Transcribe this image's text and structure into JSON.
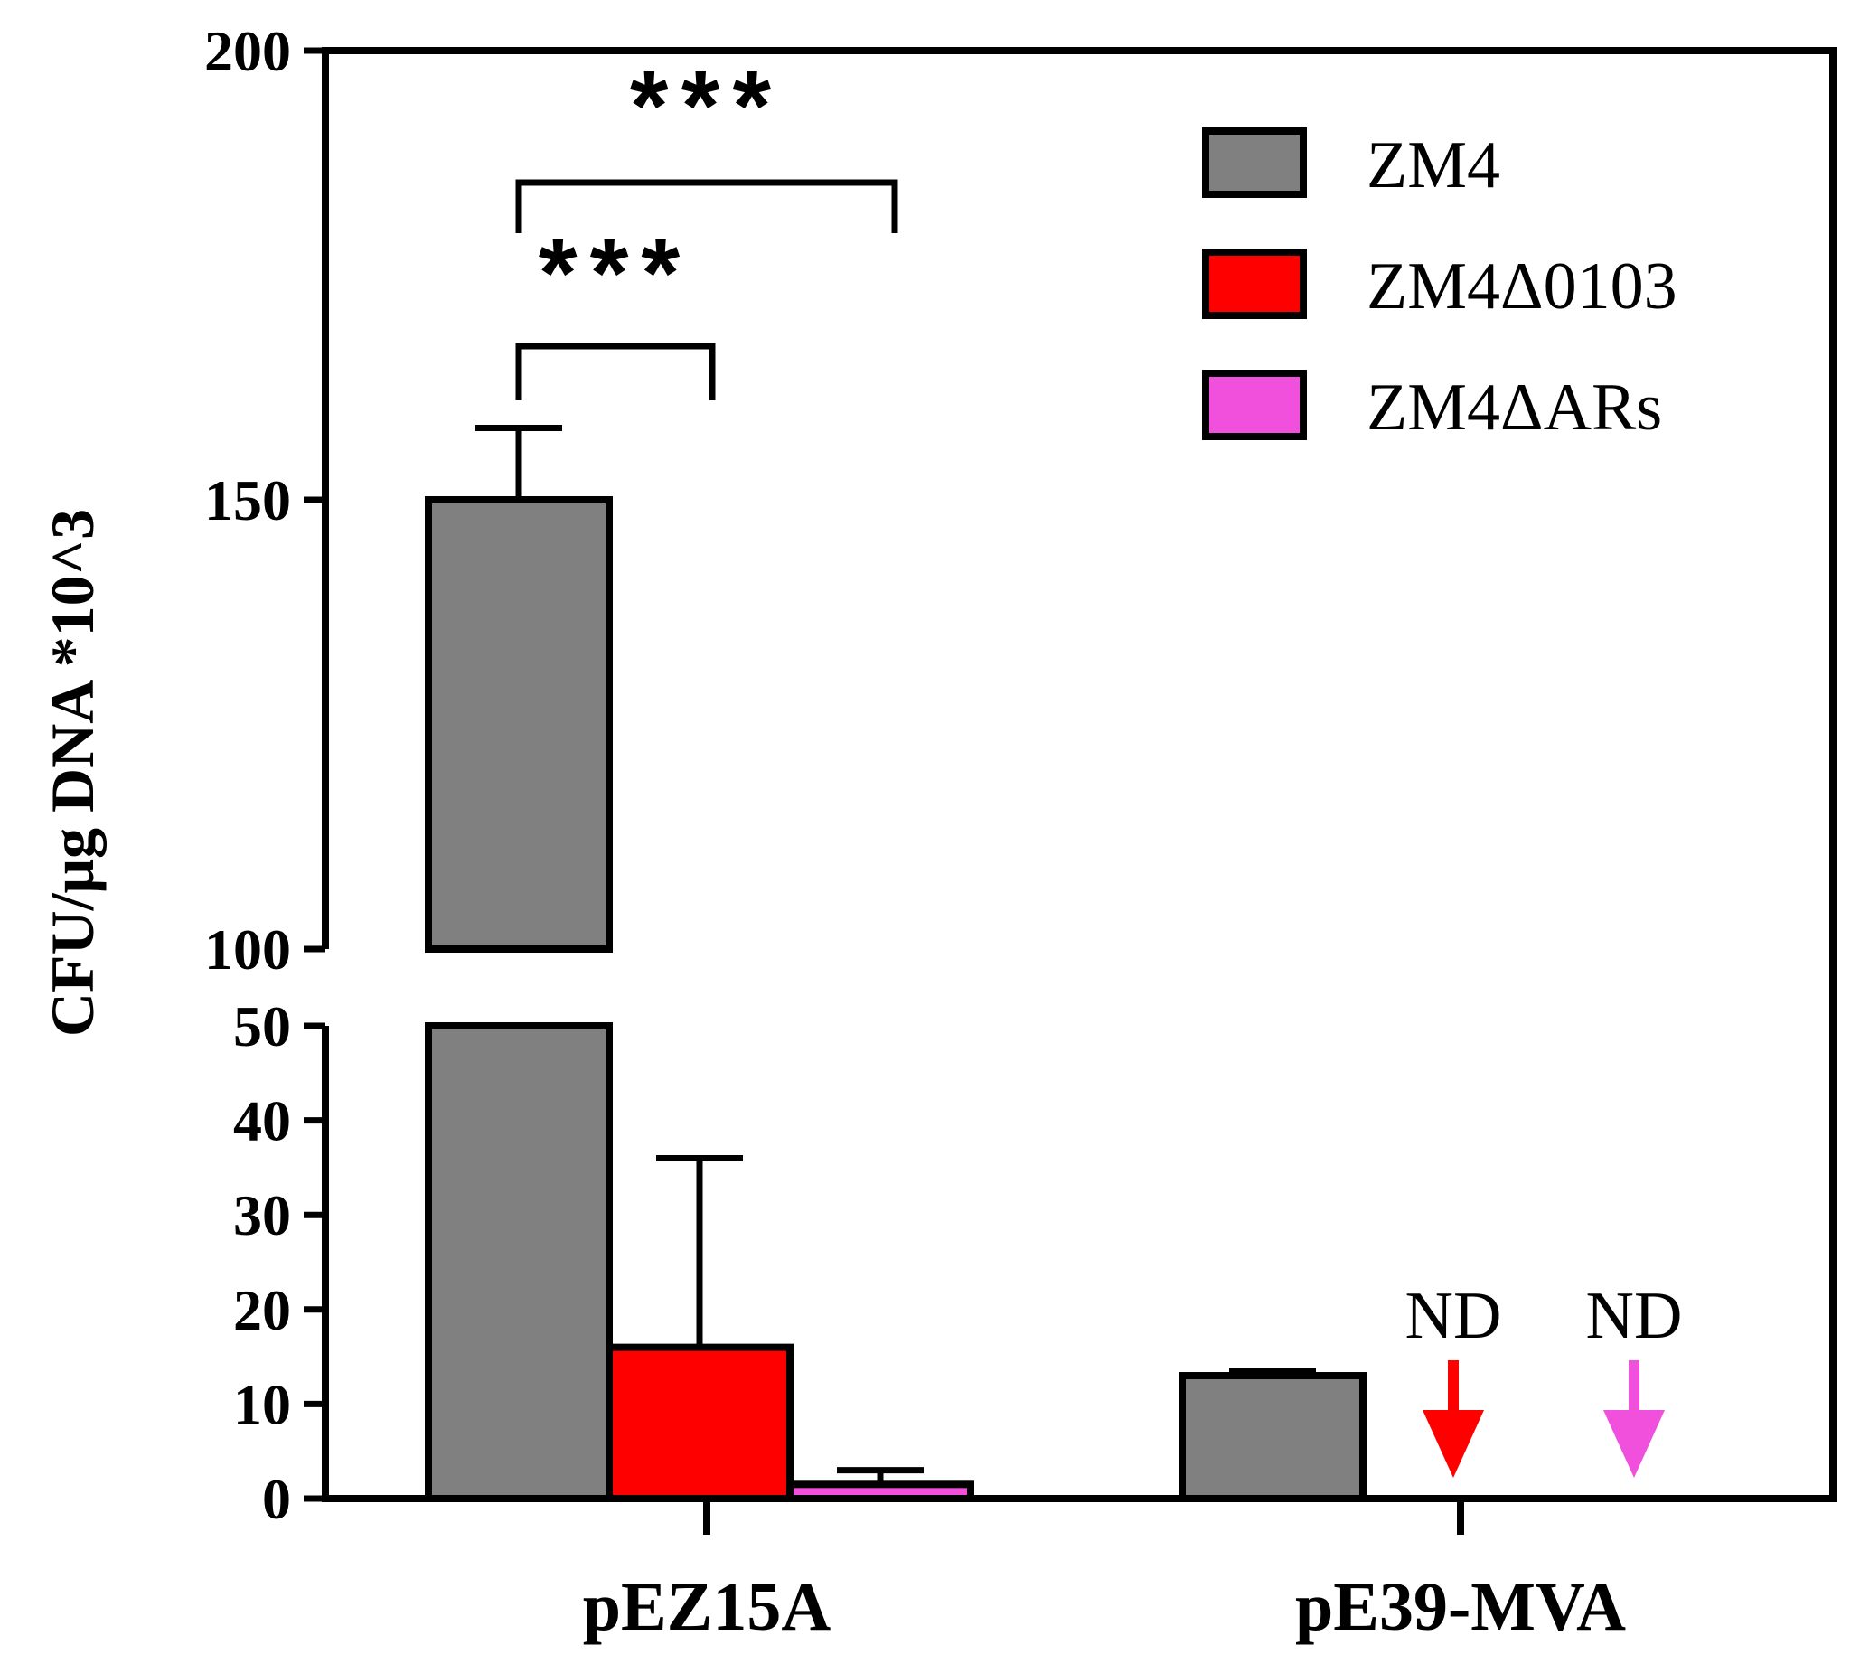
{
  "chart_data": {
    "type": "bar",
    "categories": [
      "pEZ15A",
      "pE39-MVA"
    ],
    "ylabel": "CFU/μg DNA *10^3",
    "xlabel": "",
    "y_axis_break": {
      "lower_range": [
        0,
        50
      ],
      "upper_range": [
        100,
        200
      ]
    },
    "y_ticks_lower": [
      "0",
      "10",
      "20",
      "30",
      "40",
      "50"
    ],
    "y_ticks_upper": [
      "100",
      "150",
      "200"
    ],
    "series": [
      {
        "name": "ZM4",
        "color": "#808080",
        "values": [
          150,
          13
        ],
        "error": [
          8,
          0.5
        ]
      },
      {
        "name": "ZM4Δ0103",
        "color": "#ff0000",
        "values": [
          16,
          null
        ],
        "error": [
          20,
          null
        ]
      },
      {
        "name": "ZM4ΔARs",
        "color": "#f050dc",
        "values": [
          1.5,
          null
        ],
        "error": [
          1.5,
          null
        ]
      }
    ],
    "not_detected_label": "ND",
    "not_detected": [
      {
        "category": "pE39-MVA",
        "series": "ZM4Δ0103"
      },
      {
        "category": "pE39-MVA",
        "series": "ZM4ΔARs"
      }
    ],
    "significance": [
      {
        "label": "***",
        "between": [
          "ZM4",
          "ZM4Δ0103"
        ],
        "category": "pEZ15A"
      },
      {
        "label": "***",
        "between": [
          "ZM4",
          "ZM4ΔARs"
        ],
        "category": "pEZ15A"
      }
    ],
    "legend_position": "top-right"
  }
}
